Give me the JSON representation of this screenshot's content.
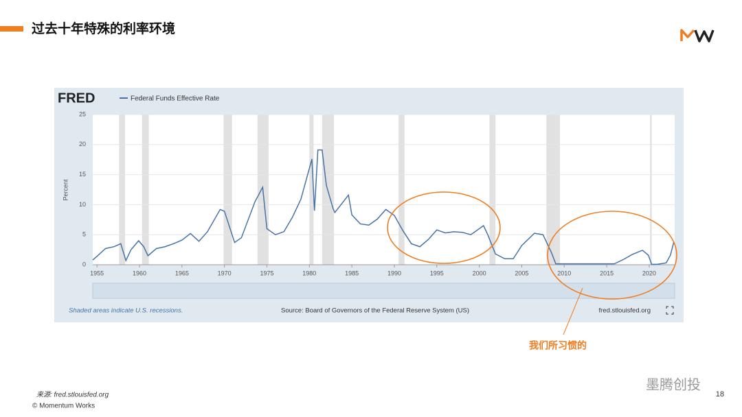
{
  "slide": {
    "title": "过去十年特殊的利率环境",
    "annotation": "我们所习惯的",
    "source": "来源: fred.stlouisfed.org",
    "copyright": "© Momentum Works",
    "page": "18",
    "watermark": "墨腾创投"
  },
  "chart_data": {
    "type": "line",
    "brand": "FRED",
    "y_label": "Percent",
    "note": "Shaded areas indicate U.S. recessions.",
    "source": "Source: Board of Governors of the Federal Reserve System (US)",
    "site": "fred.stlouisfed.org",
    "x": [
      1954.5,
      1955,
      1956,
      1957,
      1957.8,
      1958.4,
      1959,
      1959.9,
      1960.5,
      1961,
      1962,
      1963,
      1964,
      1965,
      1966,
      1967,
      1968,
      1969.5,
      1970,
      1971.2,
      1972,
      1973.6,
      1974.5,
      1975,
      1976,
      1977,
      1978,
      1979,
      1980.3,
      1980.6,
      1981,
      1981.5,
      1982,
      1982.8,
      1983,
      1984.6,
      1985,
      1986,
      1987,
      1988,
      1989,
      1990,
      1991,
      1992,
      1993,
      1994,
      1995,
      1996,
      1997,
      1998,
      1999,
      2000.5,
      2001,
      2001.9,
      2003,
      2004,
      2005,
      2006.5,
      2007.5,
      2008.5,
      2009,
      2012,
      2015.9,
      2017,
      2018,
      2019.2,
      2019.9,
      2020.3,
      2021,
      2022,
      2022.5,
      2022.9
    ],
    "series": [
      {
        "name": "Federal Funds Effective Rate",
        "color": "#4572a7",
        "values": [
          0.8,
          1.4,
          2.7,
          3.0,
          3.5,
          0.7,
          2.5,
          4.0,
          3.0,
          1.5,
          2.7,
          3.0,
          3.5,
          4.1,
          5.2,
          3.9,
          5.5,
          9.2,
          8.9,
          3.7,
          4.5,
          10.5,
          12.9,
          6.0,
          5.0,
          5.5,
          7.9,
          10.9,
          17.6,
          9.0,
          19.1,
          19.1,
          13.2,
          9.3,
          8.7,
          11.6,
          8.3,
          6.8,
          6.6,
          7.6,
          9.2,
          8.2,
          5.7,
          3.5,
          3.0,
          4.2,
          5.8,
          5.3,
          5.5,
          5.4,
          5.0,
          6.5,
          5.0,
          1.8,
          1.0,
          1.0,
          3.2,
          5.25,
          5.0,
          2.0,
          0.15,
          0.15,
          0.15,
          0.9,
          1.7,
          2.4,
          1.6,
          0.05,
          0.08,
          0.3,
          1.6,
          3.8
        ]
      }
    ],
    "recessions": [
      [
        1957.6,
        1958.3
      ],
      [
        1960.3,
        1961.1
      ],
      [
        1969.9,
        1970.9
      ],
      [
        1973.9,
        1975.2
      ],
      [
        1980.0,
        1980.5
      ],
      [
        1981.5,
        1982.9
      ],
      [
        1990.5,
        1991.2
      ],
      [
        2001.2,
        2001.9
      ],
      [
        2007.9,
        2009.5
      ],
      [
        2020.1,
        2020.3
      ]
    ],
    "xlim": [
      1954.5,
      2023
    ],
    "xticks": [
      1955,
      1960,
      1965,
      1970,
      1975,
      1980,
      1985,
      1990,
      1995,
      2000,
      2005,
      2010,
      2015,
      2020
    ],
    "ylim": [
      0,
      25
    ],
    "yticks": [
      0,
      5,
      10,
      15,
      20,
      25
    ],
    "grid": true
  }
}
